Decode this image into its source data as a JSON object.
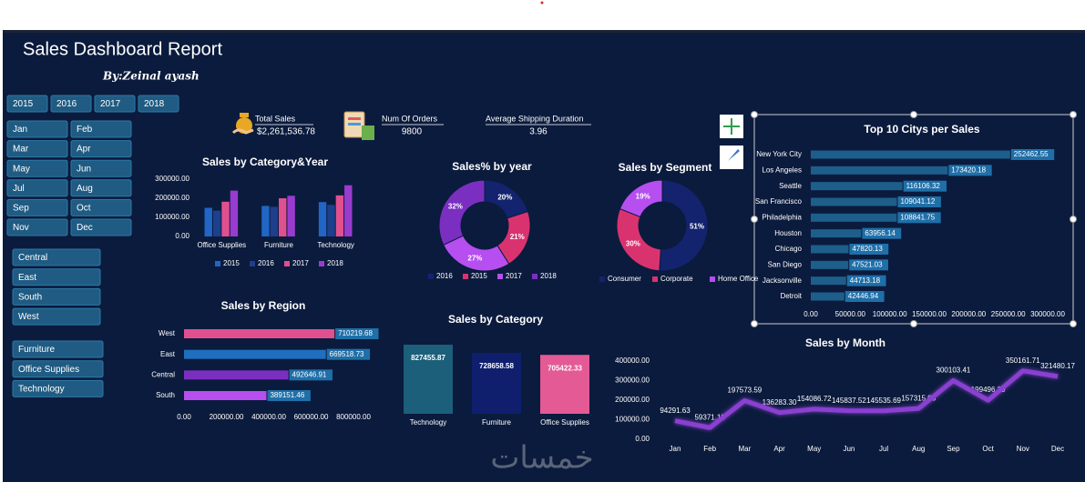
{
  "header": {
    "title": "Sales Dashboard Report",
    "subtitle": "By:Zeinal ayash",
    "watermark": "خمسات"
  },
  "slicers": {
    "years": [
      "2015",
      "2016",
      "2017",
      "2018"
    ],
    "months": [
      "Jan",
      "Feb",
      "Mar",
      "Apr",
      "May",
      "Jun",
      "Jul",
      "Aug",
      "Sep",
      "Oct",
      "Nov",
      "Dec"
    ],
    "regions": [
      "Central",
      "East",
      "South",
      "West"
    ],
    "categories": [
      "Furniture",
      "Office Supplies",
      "Technology"
    ]
  },
  "kpis": [
    {
      "label": "Total Sales",
      "value": "$2,261,536.78"
    },
    {
      "label": "Num Of Orders",
      "value": 9800
    },
    {
      "label": "Average Shipping Duration",
      "value": 3.96
    }
  ],
  "chart_data": [
    {
      "type": "bar",
      "title": "Sales by Category&Year",
      "categories": [
        "Office Supplies",
        "Furniture",
        "Technology"
      ],
      "series": [
        {
          "name": "2015",
          "color": "#2166c4",
          "values": [
            150000,
            160000,
            180000
          ]
        },
        {
          "name": "2016",
          "color": "#1e3f8c",
          "values": [
            135000,
            155000,
            165000
          ]
        },
        {
          "name": "2017",
          "color": "#e0508f",
          "values": [
            182000,
            200000,
            215000
          ]
        },
        {
          "name": "2018",
          "color": "#9a3bd0",
          "values": [
            240000,
            213000,
            268000
          ]
        }
      ],
      "ylim": [
        0,
        300000
      ],
      "yticks": [
        {
          "value": 0,
          "label": "0.00"
        },
        {
          "value": 100000,
          "label": "100000.00"
        },
        {
          "value": 200000,
          "label": "200000.00"
        },
        {
          "value": 300000,
          "label": "300000.00"
        }
      ]
    },
    {
      "type": "donut",
      "title": "Sales% by year",
      "categories": [
        "2016",
        "2015",
        "2017",
        "2018"
      ],
      "values": [
        20,
        21,
        27,
        32
      ],
      "value_labels": [
        "20%",
        "21%",
        "27%",
        "32%"
      ],
      "colors": [
        "#13236e",
        "#d9336f",
        "#b64ef0",
        "#7a2fc0"
      ]
    },
    {
      "type": "donut",
      "title": "Sales by Segment",
      "categories": [
        "Consumer",
        "Corporate",
        "Home Office"
      ],
      "values": [
        51,
        30,
        19
      ],
      "value_labels": [
        "51%",
        "30%",
        "19%"
      ],
      "colors": [
        "#13236e",
        "#d9336f",
        "#b64ef0"
      ]
    },
    {
      "type": "barh",
      "title": "Top 10 Citys per Sales",
      "categories": [
        "New York City",
        "Los Angeles",
        "Seattle",
        "San Francisco",
        "Philadelphia",
        "Houston",
        "Chicago",
        "San Diego",
        "Jacksonville",
        "Detroit"
      ],
      "values": [
        252462.55,
        173420.18,
        116106.32,
        109041.12,
        108841.75,
        63956.14,
        47820.13,
        47521.03,
        44713.18,
        42446.94
      ],
      "color": "#1d5f8a",
      "xlim": [
        0,
        300000
      ],
      "xticks": [
        {
          "value": 0,
          "label": "0.00"
        },
        {
          "value": 50000,
          "label": "50000.00"
        },
        {
          "value": 100000,
          "label": "100000.00"
        },
        {
          "value": 150000,
          "label": "150000.00"
        },
        {
          "value": 200000,
          "label": "200000.00"
        },
        {
          "value": 250000,
          "label": "250000.00"
        },
        {
          "value": 300000,
          "label": "300000.00"
        }
      ]
    },
    {
      "type": "barh",
      "title": "Sales by Region",
      "categories": [
        "West",
        "East",
        "Central",
        "South"
      ],
      "values": [
        710219.68,
        669518.73,
        492646.91,
        389151.46
      ],
      "colors": [
        "#e0508f",
        "#1f6fbf",
        "#7a2fc0",
        "#b64ef0"
      ],
      "xlim": [
        0,
        800000
      ],
      "xticks": [
        {
          "value": 0,
          "label": "0.00"
        },
        {
          "value": 200000,
          "label": "200000.00"
        },
        {
          "value": 400000,
          "label": "400000.00"
        },
        {
          "value": 600000,
          "label": "600000.00"
        },
        {
          "value": 800000,
          "label": "800000.00"
        }
      ]
    },
    {
      "type": "bar",
      "title": "Sales by Category",
      "categories": [
        "Technology",
        "Furniture",
        "Office Supplies"
      ],
      "values": [
        827455.87,
        728658.58,
        705422.33
      ],
      "colors": [
        "#1b5f7a",
        "#0f1f6e",
        "#e35a95"
      ]
    },
    {
      "type": "line",
      "title": "Sales by Month",
      "categories": [
        "Jan",
        "Feb",
        "Mar",
        "Apr",
        "May",
        "Jun",
        "Jul",
        "Aug",
        "Sep",
        "Oct",
        "Nov",
        "Dec"
      ],
      "values": [
        94291.63,
        59371.12,
        197573.59,
        136283.3,
        154086.72,
        145837.52,
        145535.69,
        157315.93,
        300103.41,
        199496.29,
        350161.71,
        321480.17
      ],
      "value_labels": [
        "94291.63",
        "59371.12",
        "197573.59",
        "136283.30",
        "154086.72",
        "145837.52",
        "145535.69",
        "157315.93",
        "300103.41",
        "199496.29",
        "350161.71",
        "321480.17"
      ],
      "color": "#8a3fd0",
      "ylim": [
        0,
        400000
      ],
      "yticks": [
        {
          "value": 0,
          "label": "0.00"
        },
        {
          "value": 100000,
          "label": "100000.00"
        },
        {
          "value": 200000,
          "label": "200000.00"
        },
        {
          "value": 300000,
          "label": "300000.00"
        },
        {
          "value": 400000,
          "label": "400000.00"
        }
      ]
    }
  ]
}
